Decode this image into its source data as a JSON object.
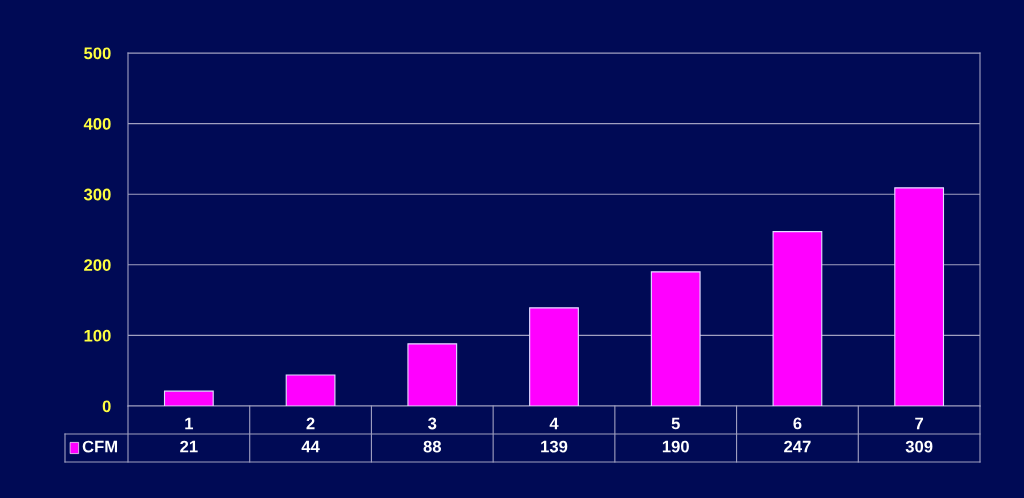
{
  "chart_data": {
    "type": "bar",
    "categories": [
      "1",
      "2",
      "3",
      "4",
      "5",
      "6",
      "7"
    ],
    "series": [
      {
        "name": "CFM",
        "color": "#ff00ff",
        "values": [
          21,
          44,
          88,
          139,
          190,
          247,
          309
        ]
      }
    ],
    "ylim": [
      0,
      500
    ],
    "yticks": [
      0,
      100,
      200,
      300,
      400,
      500
    ],
    "grid": "y",
    "data_labels": true
  }
}
